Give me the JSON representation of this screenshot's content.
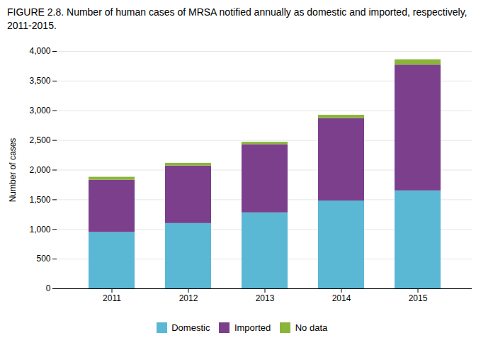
{
  "chart_data": {
    "type": "bar",
    "stacked": true,
    "title": "FIGURE 2.8. Number of human cases of MRSA notified annually as domestic and imported, respectively, 2011-2015.",
    "ylabel": "Number of cases",
    "categories": [
      "2011",
      "2012",
      "2013",
      "2014",
      "2015"
    ],
    "series": [
      {
        "name": "Domestic",
        "color": "#5bb8d4",
        "values": [
          950,
          1100,
          1280,
          1480,
          1650
        ]
      },
      {
        "name": "Imported",
        "color": "#7b3f8c",
        "values": [
          880,
          970,
          1150,
          1390,
          2120
        ]
      },
      {
        "name": "No data",
        "color": "#8ab53a",
        "values": [
          50,
          45,
          40,
          55,
          90
        ]
      }
    ],
    "ylim": [
      0,
      4000
    ],
    "yticks": [
      0,
      500,
      1000,
      1500,
      2000,
      2500,
      3000,
      3500,
      4000
    ],
    "grid": true,
    "legend": "bottom"
  }
}
